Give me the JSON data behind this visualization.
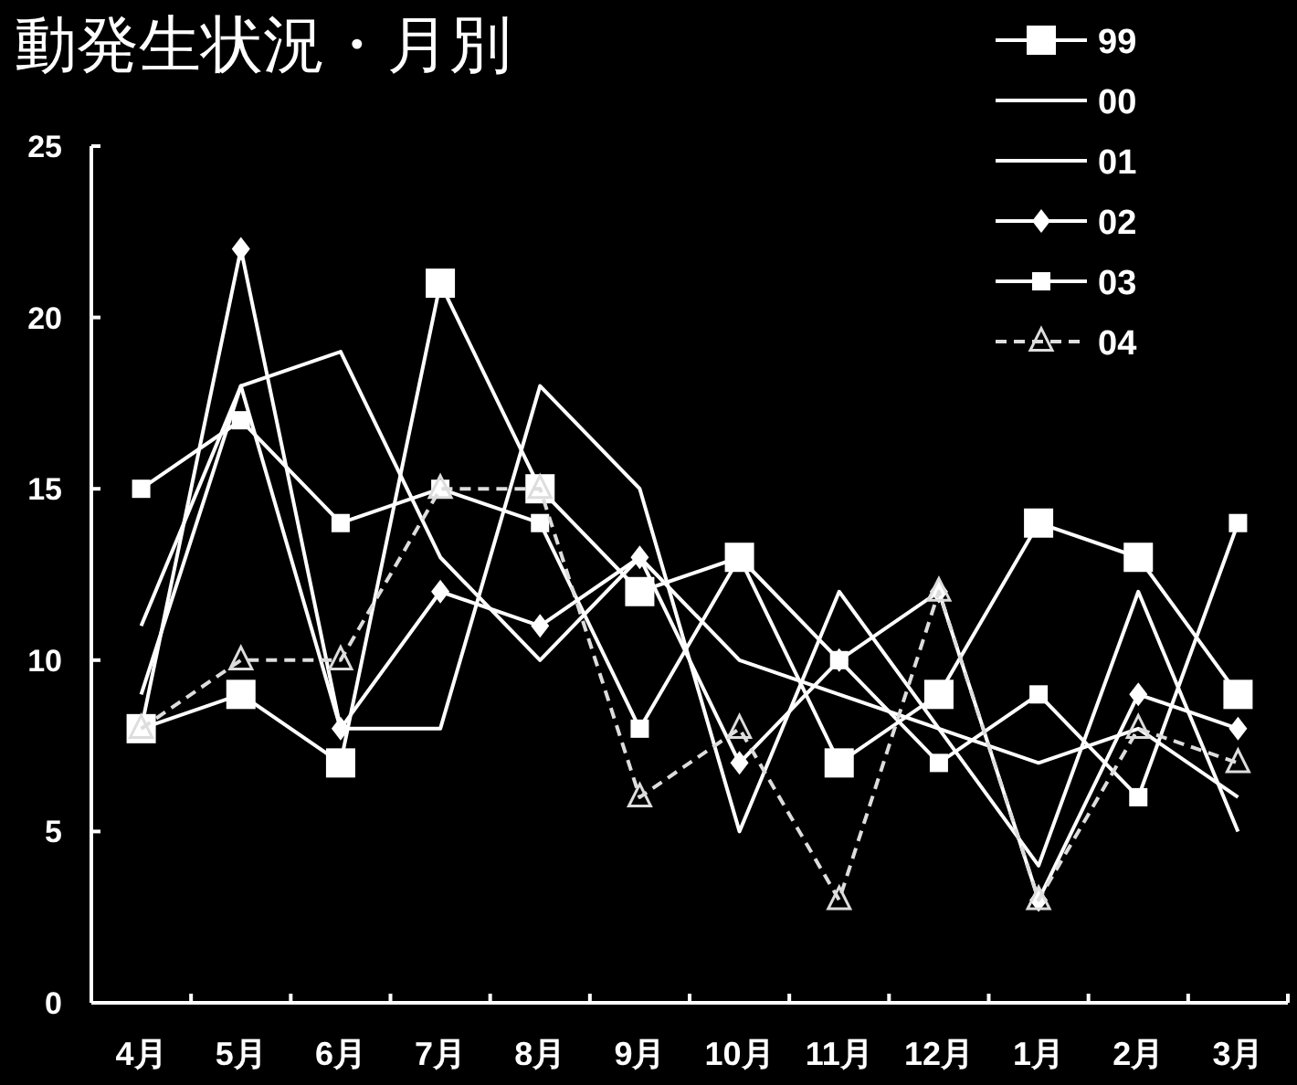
{
  "chart_data": {
    "type": "line",
    "title": "動発生状況・月別",
    "categories": [
      "4月",
      "5月",
      "6月",
      "7月",
      "8月",
      "9月",
      "10月",
      "11月",
      "12月",
      "1月",
      "2月",
      "3月"
    ],
    "ylim": [
      0,
      25
    ],
    "yticks": [
      0,
      5,
      10,
      15,
      20,
      25
    ],
    "grid": false,
    "legend": "top right",
    "series": [
      {
        "name": "99",
        "color": "#ffffff",
        "marker": "square",
        "line_style": "solid",
        "values": [
          8,
          9,
          7,
          21,
          15,
          12,
          13,
          7,
          9,
          14,
          13,
          9
        ]
      },
      {
        "name": "00",
        "color": "#ffffff",
        "marker": "none",
        "line_style": "solid",
        "values": [
          9,
          18,
          19,
          13,
          10,
          13,
          10,
          9,
          8,
          7,
          8,
          6
        ]
      },
      {
        "name": "01",
        "color": "#ffffff",
        "marker": "none",
        "line_style": "solid",
        "values": [
          11,
          18,
          8,
          8,
          18,
          15,
          5,
          12,
          8,
          4,
          12,
          5
        ]
      },
      {
        "name": "02",
        "color": "#ffffff",
        "marker": "diamond",
        "line_style": "solid",
        "values": [
          8,
          22,
          8,
          12,
          11,
          13,
          7,
          10,
          12,
          3,
          9,
          8
        ]
      },
      {
        "name": "03",
        "color": "#ffffff",
        "marker": "square",
        "line_style": "solid",
        "values": [
          15,
          17,
          14,
          15,
          14,
          8,
          13,
          10,
          7,
          9,
          6,
          14
        ]
      },
      {
        "name": "04",
        "color": "#dddddd",
        "marker": "triangle",
        "line_style": "dashed",
        "values": [
          8,
          10,
          10,
          15,
          15,
          6,
          8,
          3,
          12,
          3,
          8,
          7
        ]
      }
    ]
  }
}
